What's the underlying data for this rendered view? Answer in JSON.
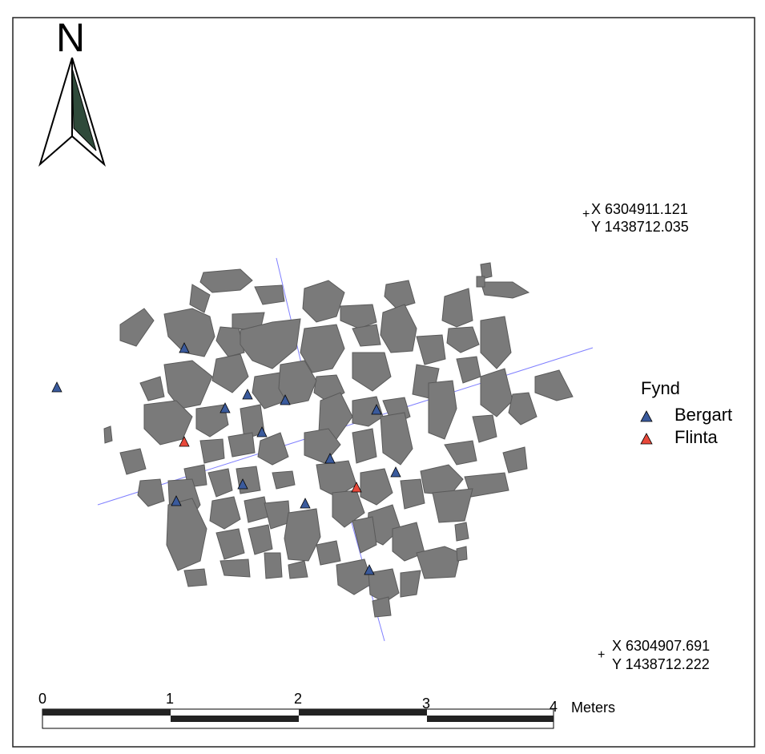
{
  "north_arrow": {
    "label": "N"
  },
  "coordinates": {
    "top": {
      "marker": "+",
      "x": "X 6304911.121",
      "y": "Y 1438712.035"
    },
    "bottom": {
      "marker": "+",
      "x": "X 6304907.691",
      "y": "Y 1438712.222"
    }
  },
  "legend": {
    "title": "Fynd",
    "items": [
      {
        "label": "Bergart",
        "color": "#3a5a9c"
      },
      {
        "label": "Flinta",
        "color": "#e8483a"
      }
    ]
  },
  "scale_bar": {
    "ticks": [
      "0",
      "1",
      "2",
      "3",
      "4"
    ],
    "unit": "Meters"
  },
  "colors": {
    "stone_fill": "#7a7a7a",
    "stone_stroke": "#5a5a5a",
    "grid_line": "#8080ff",
    "frame": "#222222"
  }
}
